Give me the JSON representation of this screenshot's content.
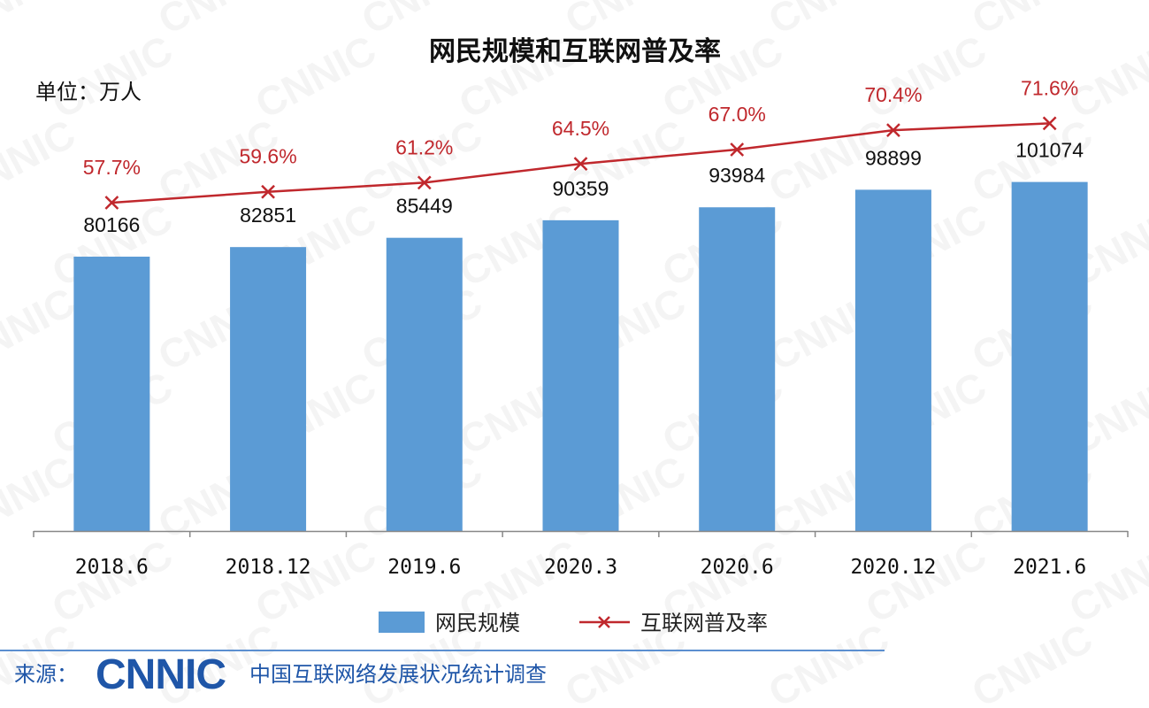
{
  "chart_data": {
    "type": "bar",
    "title": "网民规模和互联网普及率",
    "unit_label": "单位：万人",
    "categories": [
      "2018.6",
      "2018.12",
      "2019.6",
      "2020.3",
      "2020.6",
      "2020.12",
      "2021.6"
    ],
    "series": [
      {
        "name": "网民规模",
        "type": "bar",
        "values": [
          80166,
          82851,
          85449,
          90359,
          93984,
          98899,
          101074
        ],
        "labels": [
          "80166",
          "82851",
          "85449",
          "90359",
          "93984",
          "98899",
          "101074"
        ],
        "color": "#5b9bd5"
      },
      {
        "name": "互联网普及率",
        "type": "line",
        "values": [
          57.7,
          59.6,
          61.2,
          64.5,
          67.0,
          70.4,
          71.6
        ],
        "labels": [
          "57.7%",
          "59.6%",
          "61.2%",
          "64.5%",
          "67.0%",
          "70.4%",
          "71.6%"
        ],
        "color": "#c0282d",
        "marker": "x"
      }
    ],
    "legend_position": "bottom-center",
    "grid": false
  },
  "source": {
    "prefix": "来源：",
    "logo": "CNNIC",
    "org": "中国互联网络发展状况统计调查"
  },
  "watermark_text": "CNNIC",
  "colors": {
    "bar": "#5b9bd5",
    "line": "#c0282d",
    "title": "#111111",
    "source_blue": "#1f56a8"
  }
}
